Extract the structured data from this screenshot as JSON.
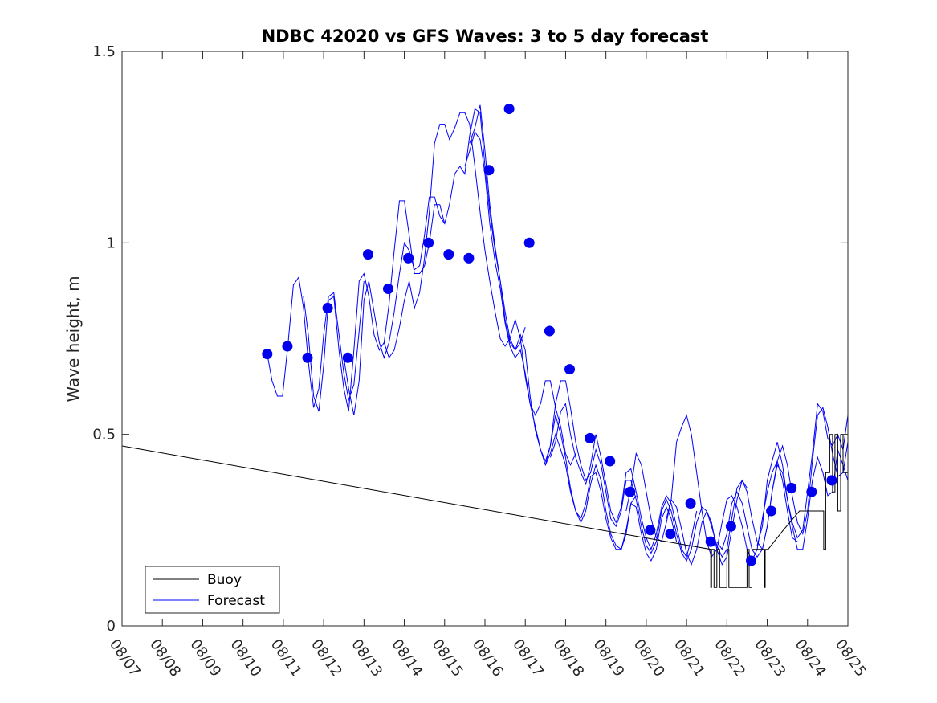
{
  "chart_data": {
    "type": "line",
    "title": "NDBC 42020 vs GFS Waves: 3 to 5 day forecast",
    "xlabel": "",
    "ylabel": "Wave height, m",
    "xlim": [
      0,
      18
    ],
    "ylim": [
      0,
      1.5
    ],
    "x_tick_values": [
      0,
      1,
      2,
      3,
      4,
      5,
      6,
      7,
      8,
      9,
      10,
      11,
      12,
      13,
      14,
      15,
      16,
      17,
      18
    ],
    "x_tick_labels": [
      "08/07",
      "08/08",
      "08/09",
      "08/10",
      "08/11",
      "08/12",
      "08/13",
      "08/14",
      "08/15",
      "08/16",
      "08/17",
      "08/18",
      "08/19",
      "08/20",
      "08/21",
      "08/22",
      "08/23",
      "08/24",
      "08/25"
    ],
    "y_ticks": [
      0,
      0.5,
      1,
      1.5
    ],
    "y_tick_labels": [
      "0",
      "0.5",
      "1",
      "1.5"
    ],
    "legend": {
      "location": "bottom-left",
      "entries": [
        "Buoy",
        "Forecast"
      ]
    },
    "colors": {
      "buoy": "#000000",
      "forecast": "#0000ff",
      "points": "#0000ee"
    },
    "buoy": {
      "name": "Buoy",
      "x": [
        0,
        14.6,
        14.6,
        14.62,
        14.62,
        14.68,
        14.68,
        14.75,
        14.75,
        14.82,
        14.82,
        15.0,
        15.0,
        15.05,
        15.05,
        15.5,
        15.5,
        15.55,
        15.55,
        15.62,
        15.62,
        15.7,
        15.7,
        15.93,
        15.93,
        15.95,
        15.95,
        16.02,
        16.02,
        16.4,
        16.4,
        16.8,
        16.8,
        17.4,
        17.4,
        17.45,
        17.45,
        17.55,
        17.55,
        17.62,
        17.62,
        17.68,
        17.68,
        17.75,
        17.75,
        17.82,
        17.82,
        17.88,
        17.88,
        18.0
      ],
      "y": [
        0.47,
        0.2,
        0.1,
        0.1,
        0.2,
        0.2,
        0.1,
        0.1,
        0.2,
        0.2,
        0.1,
        0.1,
        0.2,
        0.2,
        0.1,
        0.1,
        0.2,
        0.2,
        0.1,
        0.1,
        0.2,
        0.2,
        0.2,
        0.2,
        0.1,
        0.1,
        0.2,
        0.2,
        0.2,
        0.25,
        0.25,
        0.3,
        0.3,
        0.3,
        0.2,
        0.2,
        0.4,
        0.4,
        0.5,
        0.5,
        0.35,
        0.35,
        0.5,
        0.5,
        0.3,
        0.3,
        0.5,
        0.5,
        0.4,
        0.4
      ]
    },
    "forecast": {
      "name": "Forecast",
      "series": [
        {
          "x": [
            3.6,
            3.72,
            3.85,
            3.98,
            4.12,
            4.25,
            4.38,
            4.5,
            4.62,
            4.75,
            4.88,
            5.0,
            5.12,
            5.25,
            5.38,
            5.5,
            5.62,
            5.75,
            5.88,
            6.0
          ],
          "y": [
            0.71,
            0.64,
            0.6,
            0.6,
            0.74,
            0.89,
            0.91,
            0.83,
            0.69,
            0.57,
            0.62,
            0.76,
            0.86,
            0.87,
            0.76,
            0.66,
            0.59,
            0.63,
            0.77,
            0.9
          ]
        },
        {
          "x": [
            4.5,
            4.62,
            4.75,
            4.88,
            5.0,
            5.12,
            5.25,
            5.38,
            5.5,
            5.62,
            5.75,
            5.88,
            6.0,
            6.12,
            6.25,
            6.38,
            6.5,
            6.62,
            6.75,
            6.88,
            7.0,
            7.12,
            7.25,
            7.38,
            7.5,
            7.62,
            7.75,
            7.88,
            8.0
          ],
          "y": [
            0.86,
            0.76,
            0.6,
            0.56,
            0.68,
            0.85,
            0.86,
            0.72,
            0.62,
            0.56,
            0.72,
            0.9,
            0.92,
            0.86,
            0.76,
            0.72,
            0.74,
            0.84,
            0.98,
            1.11,
            1.11,
            1.02,
            0.92,
            0.92,
            0.94,
            1.0,
            1.1,
            1.1,
            1.05
          ]
        },
        {
          "x": [
            5.5,
            5.62,
            5.75,
            5.88,
            6.0,
            6.12,
            6.25,
            6.38,
            6.5,
            6.62,
            6.75,
            6.88,
            7.0,
            7.12,
            7.25,
            7.38,
            7.5,
            7.62,
            7.75,
            7.88,
            8.0,
            8.12,
            8.25,
            8.38,
            8.5,
            8.62,
            8.75,
            8.88,
            9.0,
            9.12,
            9.25,
            9.38,
            9.5,
            9.62,
            9.75,
            9.88,
            10.0
          ],
          "y": [
            0.7,
            0.62,
            0.55,
            0.64,
            0.85,
            0.9,
            0.82,
            0.74,
            0.7,
            0.74,
            0.82,
            0.92,
            1.0,
            0.98,
            0.93,
            0.94,
            1.02,
            1.12,
            1.12,
            1.07,
            1.05,
            1.1,
            1.18,
            1.2,
            1.18,
            1.28,
            1.35,
            1.34,
            1.2,
            1.08,
            0.98,
            0.9,
            0.82,
            0.75,
            0.72,
            0.74,
            0.78
          ]
        },
        {
          "x": [
            6.5,
            6.62,
            6.75,
            6.88,
            7.0,
            7.12,
            7.25,
            7.38,
            7.5,
            7.62,
            7.75,
            7.88,
            8.0,
            8.12,
            8.25,
            8.38,
            8.5,
            8.62,
            8.75,
            8.88,
            9.0,
            9.12,
            9.25,
            9.38,
            9.5,
            9.62,
            9.75,
            9.88,
            10.0,
            10.12,
            10.25,
            10.38,
            10.5,
            10.62,
            10.75,
            10.88,
            11.0,
            11.12,
            11.25
          ],
          "y": [
            0.74,
            0.7,
            0.72,
            0.78,
            0.85,
            0.9,
            0.83,
            0.87,
            0.96,
            1.08,
            1.26,
            1.31,
            1.31,
            1.27,
            1.3,
            1.34,
            1.34,
            1.31,
            1.2,
            1.08,
            0.98,
            0.9,
            0.82,
            0.75,
            0.73,
            0.75,
            0.8,
            0.75,
            0.65,
            0.58,
            0.55,
            0.58,
            0.64,
            0.64,
            0.57,
            0.52,
            0.45,
            0.42,
            0.45
          ]
        },
        {
          "x": [
            8.5,
            8.62,
            8.75,
            8.88,
            9.0,
            9.12,
            9.25,
            9.38,
            9.5,
            9.62,
            9.75,
            9.88,
            10.0,
            10.12,
            10.25,
            10.38,
            10.5,
            10.62,
            10.75,
            10.88,
            11.0,
            11.12,
            11.25,
            11.38,
            11.5,
            11.62,
            11.75,
            11.88,
            12.0,
            12.12,
            12.25,
            12.38,
            12.5,
            12.62,
            12.75
          ],
          "y": [
            1.2,
            1.24,
            1.29,
            1.27,
            1.18,
            1.05,
            0.95,
            0.88,
            0.79,
            0.73,
            0.7,
            0.72,
            0.66,
            0.58,
            0.52,
            0.46,
            0.42,
            0.45,
            0.5,
            0.46,
            0.42,
            0.35,
            0.3,
            0.28,
            0.32,
            0.39,
            0.4,
            0.35,
            0.28,
            0.23,
            0.2,
            0.2,
            0.24,
            0.32,
            0.34
          ]
        },
        {
          "x": [
            8.62,
            8.75,
            8.88,
            9.0,
            9.12,
            9.25,
            9.38,
            9.5,
            9.62,
            9.75,
            9.88,
            10.0,
            10.12,
            10.25,
            10.38,
            10.5,
            10.62,
            10.75,
            10.88,
            11.0,
            11.12,
            11.25,
            11.38,
            11.5,
            11.62,
            11.75,
            11.88,
            12.0,
            12.12,
            12.25,
            12.38,
            12.5,
            12.62,
            12.75,
            12.88,
            13.0,
            13.12,
            13.25,
            13.38,
            13.5,
            13.62,
            13.75
          ],
          "y": [
            1.26,
            1.3,
            1.36,
            1.24,
            1.1,
            0.99,
            0.9,
            0.8,
            0.74,
            0.72,
            0.76,
            0.72,
            0.6,
            0.51,
            0.46,
            0.43,
            0.47,
            0.55,
            0.5,
            0.44,
            0.36,
            0.3,
            0.27,
            0.3,
            0.37,
            0.42,
            0.38,
            0.3,
            0.24,
            0.21,
            0.2,
            0.25,
            0.32,
            0.31,
            0.24,
            0.19,
            0.17,
            0.2,
            0.28,
            0.31,
            0.28,
            0.22
          ]
        },
        {
          "x": [
            10.5,
            10.62,
            10.75,
            10.88,
            11.0,
            11.12,
            11.25,
            11.38,
            11.5,
            11.62,
            11.75,
            11.88,
            12.0,
            12.12,
            12.25,
            12.38,
            12.5,
            12.62,
            12.75,
            12.88,
            13.0,
            13.12,
            13.25,
            13.38,
            13.5,
            13.62,
            13.75,
            13.88,
            14.0,
            14.12,
            14.25,
            14.38,
            14.5,
            14.62,
            14.75,
            14.88,
            15.0,
            15.12,
            15.25,
            15.38,
            15.5
          ],
          "y": [
            0.42,
            0.47,
            0.58,
            0.64,
            0.64,
            0.57,
            0.48,
            0.42,
            0.38,
            0.4,
            0.46,
            0.42,
            0.35,
            0.28,
            0.26,
            0.3,
            0.38,
            0.38,
            0.33,
            0.26,
            0.21,
            0.19,
            0.22,
            0.3,
            0.33,
            0.3,
            0.24,
            0.19,
            0.17,
            0.2,
            0.27,
            0.31,
            0.3,
            0.26,
            0.21,
            0.18,
            0.2,
            0.28,
            0.36,
            0.38,
            0.36
          ]
        },
        {
          "x": [
            12.5,
            12.62,
            12.75,
            12.88,
            13.0,
            13.12,
            13.25,
            13.38,
            13.5,
            13.62,
            13.75,
            13.88,
            14.0,
            14.12,
            14.25,
            14.38,
            14.5,
            14.62,
            14.75,
            14.88,
            15.0,
            15.12,
            15.25,
            15.38,
            15.5,
            15.62,
            15.75,
            15.88,
            16.0,
            16.12,
            16.25,
            16.38,
            16.5,
            16.62,
            16.75,
            16.88,
            17.0,
            17.12,
            17.25,
            17.38,
            17.5,
            17.62,
            17.75,
            17.88,
            18.0
          ],
          "y": [
            0.3,
            0.36,
            0.45,
            0.42,
            0.35,
            0.28,
            0.23,
            0.22,
            0.27,
            0.33,
            0.31,
            0.25,
            0.19,
            0.16,
            0.2,
            0.27,
            0.3,
            0.27,
            0.2,
            0.16,
            0.18,
            0.25,
            0.33,
            0.38,
            0.35,
            0.28,
            0.22,
            0.2,
            0.26,
            0.35,
            0.42,
            0.4,
            0.33,
            0.26,
            0.2,
            0.2,
            0.28,
            0.38,
            0.44,
            0.4,
            0.34,
            0.35,
            0.46,
            0.42,
            0.38
          ]
        },
        {
          "x": [
            14.75,
            14.88,
            15.0,
            15.12,
            15.25,
            15.38,
            15.5,
            15.62,
            15.75,
            15.88,
            16.0,
            16.12,
            16.25,
            16.38,
            16.5,
            16.62,
            16.75,
            16.88,
            17.0,
            17.12,
            17.25,
            17.38,
            17.5,
            17.62,
            17.75,
            17.88,
            18.0
          ],
          "y": [
            0.22,
            0.2,
            0.24,
            0.32,
            0.35,
            0.32,
            0.26,
            0.2,
            0.18,
            0.2,
            0.26,
            0.35,
            0.43,
            0.47,
            0.42,
            0.34,
            0.27,
            0.24,
            0.3,
            0.43,
            0.55,
            0.57,
            0.52,
            0.45,
            0.39,
            0.4,
            0.48
          ]
        },
        {
          "x": [
            15.75,
            15.88,
            16.0,
            16.12,
            16.25,
            16.38,
            16.5,
            16.62,
            16.75,
            16.88,
            17.0,
            17.12,
            17.25,
            17.38,
            17.5,
            17.62,
            17.75,
            17.88,
            18.0
          ],
          "y": [
            0.21,
            0.26,
            0.38,
            0.43,
            0.48,
            0.42,
            0.33,
            0.27,
            0.23,
            0.25,
            0.35,
            0.45,
            0.58,
            0.56,
            0.49,
            0.47,
            0.5,
            0.46,
            0.55
          ]
        },
        {
          "x": [
            10.62,
            10.75,
            10.88,
            11.0,
            11.12,
            11.25,
            11.38,
            11.5,
            11.62,
            11.75,
            11.88,
            12.0,
            12.12,
            12.25,
            12.38,
            12.5,
            12.62,
            12.75,
            12.88,
            13.0,
            13.12,
            13.25,
            13.38,
            13.5,
            13.62,
            13.75,
            13.88,
            14.0,
            14.12,
            14.25
          ],
          "y": [
            0.44,
            0.48,
            0.56,
            0.58,
            0.5,
            0.44,
            0.4,
            0.37,
            0.42,
            0.5,
            0.44,
            0.37,
            0.3,
            0.27,
            0.31,
            0.4,
            0.41,
            0.35,
            0.28,
            0.23,
            0.2,
            0.24,
            0.31,
            0.34,
            0.32,
            0.26,
            0.2,
            0.18,
            0.23,
            0.3
          ]
        },
        {
          "x": [
            13.5,
            13.62,
            13.75,
            13.88,
            14.0,
            14.12,
            14.25,
            14.38,
            14.5,
            14.62,
            14.75,
            14.88,
            15.0,
            15.12,
            15.25,
            15.38,
            15.5,
            15.62,
            15.75,
            15.88,
            16.0,
            16.12,
            16.25,
            16.38,
            16.5,
            16.62,
            16.75
          ],
          "y": [
            0.28,
            0.33,
            0.48,
            0.52,
            0.55,
            0.5,
            0.4,
            0.3,
            0.22,
            0.18,
            0.2,
            0.27,
            0.33,
            0.34,
            0.31,
            0.26,
            0.2,
            0.17,
            0.2,
            0.28,
            0.35,
            0.4,
            0.43,
            0.38,
            0.3,
            0.23,
            0.22
          ]
        }
      ]
    },
    "forecast_points": {
      "x": [
        3.6,
        4.1,
        4.6,
        5.1,
        5.6,
        6.1,
        6.6,
        7.1,
        7.6,
        8.1,
        8.6,
        9.1,
        9.6,
        10.1,
        10.6,
        11.1,
        11.6,
        12.1,
        12.6,
        13.1,
        13.6,
        14.1,
        14.6,
        15.1,
        15.6,
        16.1,
        16.6,
        17.1,
        17.6
      ],
      "y": [
        0.71,
        0.73,
        0.7,
        0.83,
        0.7,
        0.97,
        0.88,
        0.96,
        1.0,
        0.97,
        0.96,
        1.19,
        1.35,
        1.0,
        0.77,
        0.67,
        0.49,
        0.43,
        0.35,
        0.25,
        0.24,
        0.32,
        0.22,
        0.26,
        0.17,
        0.3,
        0.36,
        0.35,
        0.38
      ]
    }
  }
}
